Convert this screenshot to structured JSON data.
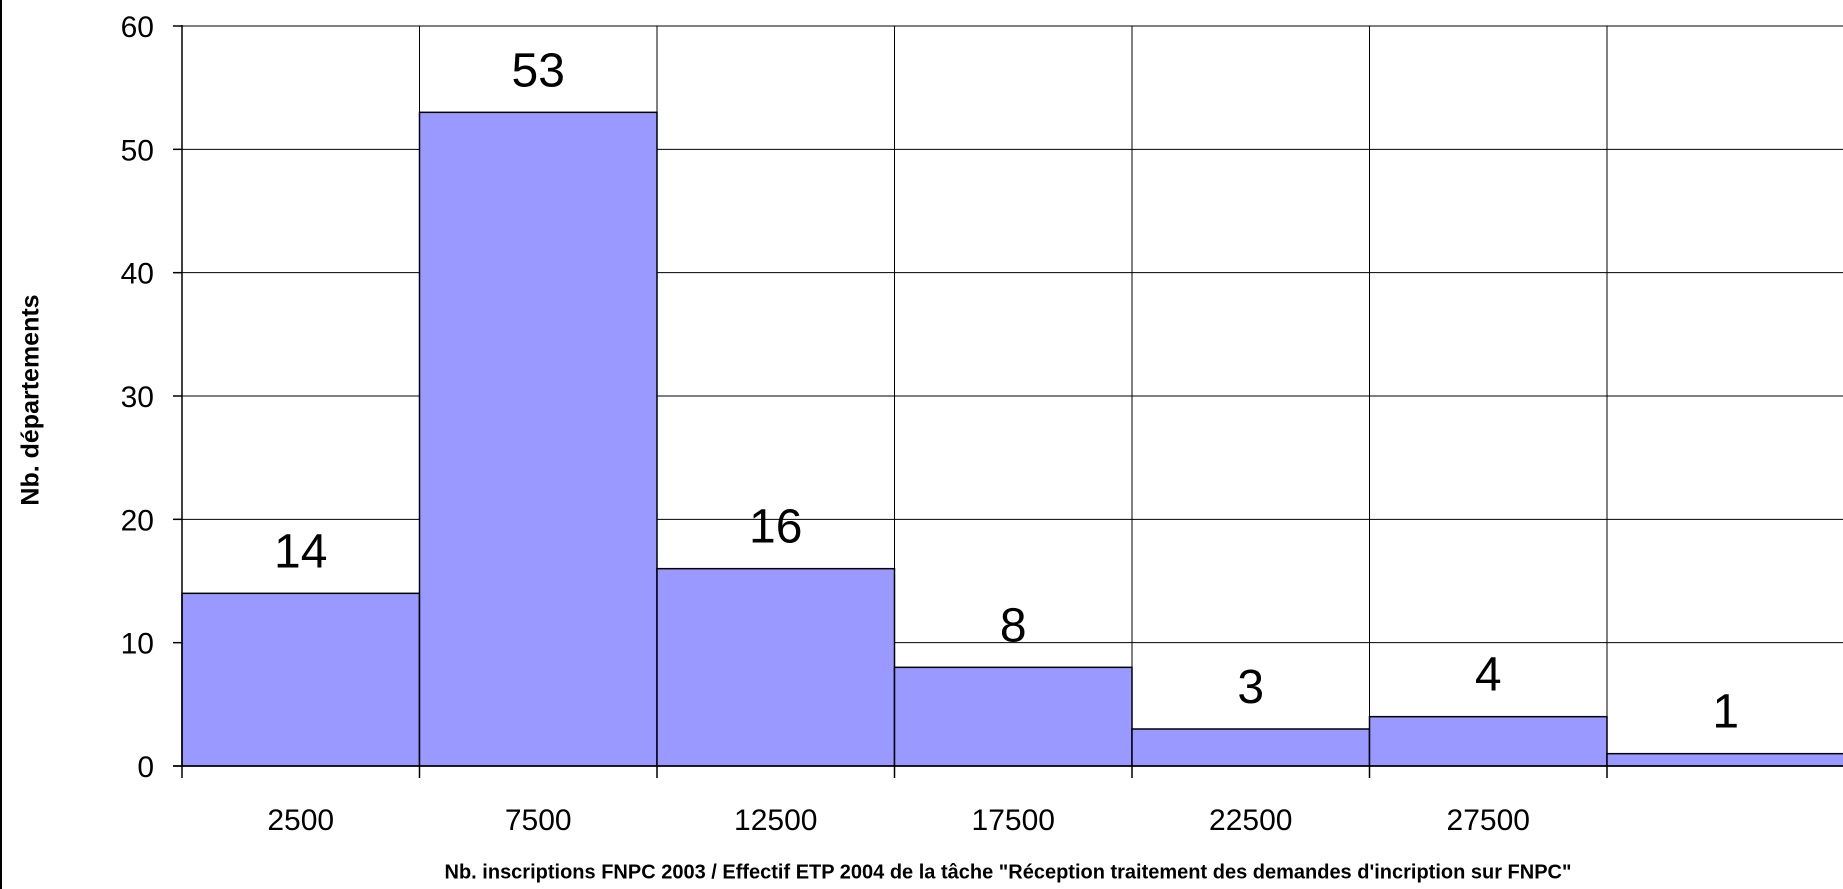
{
  "chart_data": {
    "type": "bar",
    "title": "",
    "xlabel": "Nb. inscriptions FNPC 2003 /  Effectif ETP 2004 de la tâche \"Réception traitement des demandes d'incription sur FNPC\"",
    "ylabel": "Nb. départements",
    "categories": [
      "2500",
      "7500",
      "12500",
      "17500",
      "22500",
      "27500",
      ""
    ],
    "values": [
      14,
      53,
      16,
      8,
      3,
      4,
      1
    ],
    "data_labels": [
      "14",
      "53",
      "16",
      "8",
      "3",
      "4",
      "1"
    ],
    "ylim": [
      0,
      60
    ],
    "yticks": [
      "0",
      "10",
      "20",
      "30",
      "40",
      "50",
      "60"
    ],
    "grid": true,
    "bar_color": "#9999ff",
    "legend": "none"
  }
}
